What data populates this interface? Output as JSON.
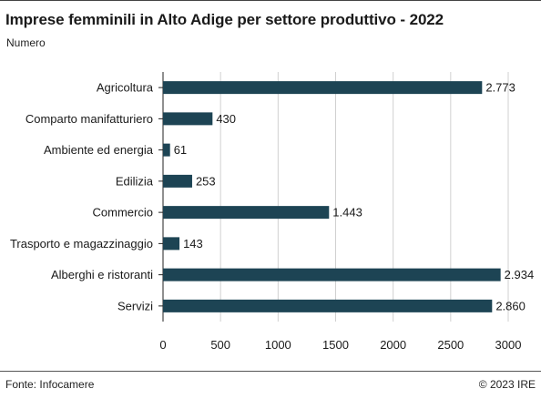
{
  "title": "Imprese femminili in Alto Adige per settore produttivo - 2022",
  "subtitle": "Numero",
  "source": "Fonte: Infocamere",
  "copyright": "© 2023 IRE",
  "colors": {
    "bar": "#1d4454",
    "grid": "#d0d0d0",
    "axis": "#222222"
  },
  "chart_data": {
    "type": "bar",
    "orientation": "horizontal",
    "title": "Imprese femminili in Alto Adige per settore produttivo - 2022",
    "subtitle": "Numero",
    "categories": [
      "Agricoltura",
      "Comparto manifatturiero",
      "Ambiente ed energia",
      "Edilizia",
      "Commercio",
      "Trasporto e magazzinaggio",
      "Alberghi e ristoranti",
      "Servizi"
    ],
    "values": [
      2773,
      430,
      61,
      253,
      1443,
      143,
      2934,
      2860
    ],
    "value_labels": [
      "2.773",
      "430",
      "61",
      "253",
      "1.443",
      "143",
      "2.934",
      "2.860"
    ],
    "xlim": [
      0,
      3000
    ],
    "xticks": [
      0,
      500,
      1000,
      1500,
      2000,
      2500,
      3000
    ],
    "xtick_labels": [
      "0",
      "500",
      "1000",
      "1500",
      "2000",
      "2500",
      "3000"
    ],
    "xlabel": "",
    "ylabel": "",
    "grid": true,
    "legend": "none"
  }
}
